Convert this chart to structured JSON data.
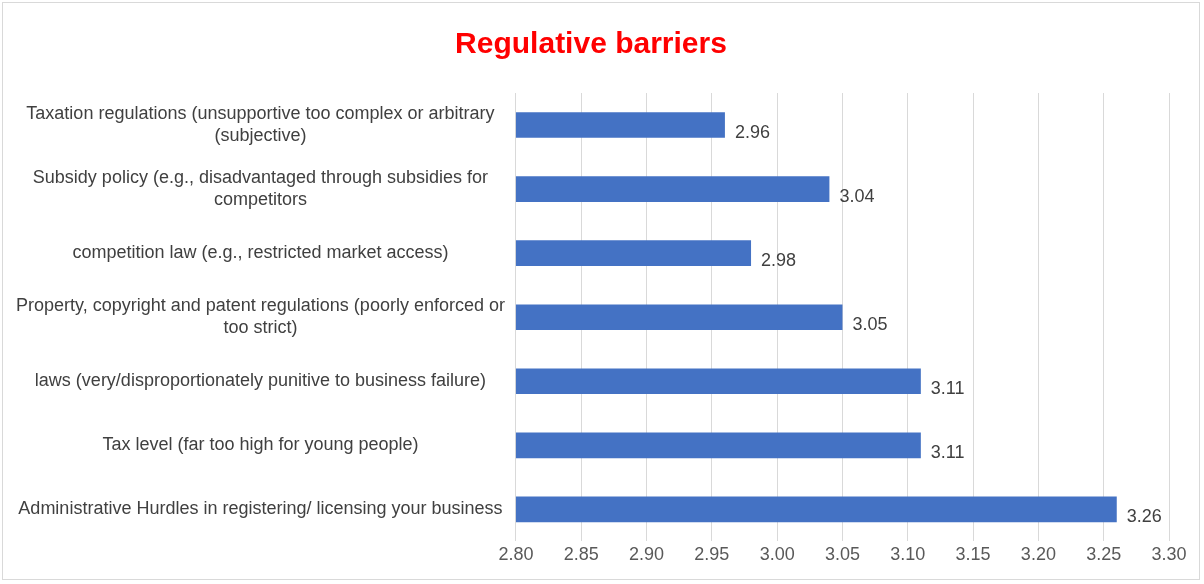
{
  "chart_data": {
    "type": "bar",
    "orientation": "horizontal",
    "title": "Regulative barriers",
    "categories": [
      "Taxation regulations (unsupportive too complex or arbitrary (subjective)",
      "Subsidy policy (e.g., disadvantaged through subsidies for competitors",
      "competition law (e.g., restricted market access)",
      "Property, copyright and patent regulations (poorly enforced or too strict)",
      "laws (very/disproportionately punitive to business failure)",
      "Tax level (far too high for young people)",
      "Administrative Hurdles in registering/ licensing your business"
    ],
    "values": [
      2.96,
      3.04,
      2.98,
      3.05,
      3.11,
      3.11,
      3.26
    ],
    "color": "#4472c4",
    "xlim": [
      2.8,
      3.3
    ],
    "xticks": [
      {
        "value": 2.8,
        "label": "2.80"
      },
      {
        "value": 2.85,
        "label": "2.85"
      },
      {
        "value": 2.9,
        "label": "2.90"
      },
      {
        "value": 2.95,
        "label": "2.95"
      },
      {
        "value": 3.0,
        "label": "3.00"
      },
      {
        "value": 3.05,
        "label": "3.05"
      },
      {
        "value": 3.1,
        "label": "3.10"
      },
      {
        "value": 3.15,
        "label": "3.15"
      },
      {
        "value": 3.2,
        "label": "3.20"
      },
      {
        "value": 3.25,
        "label": "3.25"
      },
      {
        "value": 3.3,
        "label": "3.30"
      }
    ],
    "grid": "x",
    "data_labels": true
  }
}
